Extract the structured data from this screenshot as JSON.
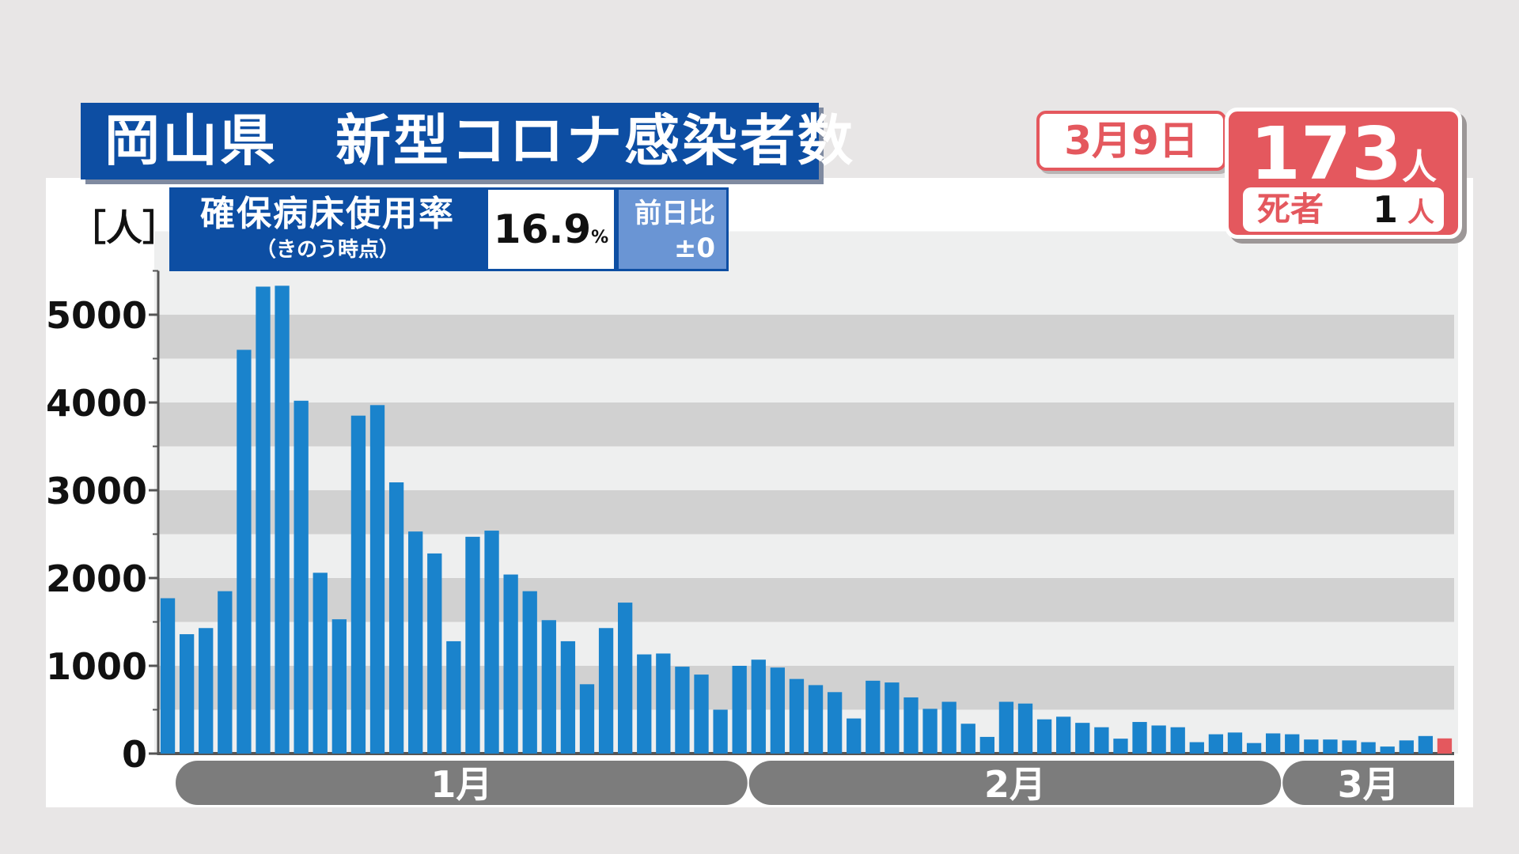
{
  "title": "岡山県　新型コロナ感染者数",
  "unit": "［人］",
  "bed_usage": {
    "label": "確保病床使用率",
    "sublabel": "（きのう時点）",
    "value": "16.9",
    "unit": "%",
    "diff_label": "前日比",
    "diff_value": "±0"
  },
  "daily": {
    "date": "3月9日",
    "cases": "173",
    "cases_unit": "人",
    "death_label": "死者",
    "deaths": "1",
    "deaths_unit": "人"
  },
  "colors": {
    "bar": "#1a83cc",
    "highlight": "#e4585e",
    "band": "#d1d1d1",
    "plot_bg": "#eeefef",
    "title_bg": "#0d4ea3"
  },
  "chart_data": {
    "type": "bar",
    "title": "岡山県　新型コロナ感染者数",
    "ylabel": "［人］",
    "ylim": [
      0,
      5500
    ],
    "yticks": [
      0,
      1000,
      2000,
      3000,
      4000,
      5000
    ],
    "months": [
      {
        "label": "1月",
        "start": 0,
        "end": 31
      },
      {
        "label": "2月",
        "start": 31,
        "end": 59
      },
      {
        "label": "3月",
        "start": 59,
        "end": 68
      }
    ],
    "values": [
      1770,
      1360,
      1430,
      1850,
      4600,
      5320,
      5330,
      4020,
      2060,
      1530,
      3850,
      3970,
      3090,
      2530,
      2280,
      1280,
      2470,
      2540,
      2040,
      1850,
      1520,
      1280,
      790,
      1430,
      1720,
      1130,
      1140,
      990,
      900,
      500,
      1000,
      1070,
      980,
      850,
      780,
      700,
      400,
      830,
      810,
      640,
      510,
      590,
      340,
      190,
      590,
      570,
      390,
      420,
      350,
      300,
      170,
      360,
      320,
      300,
      130,
      220,
      240,
      120,
      230,
      220,
      160,
      160,
      150,
      130,
      80,
      150,
      200,
      173
    ],
    "highlight_index": 67
  }
}
